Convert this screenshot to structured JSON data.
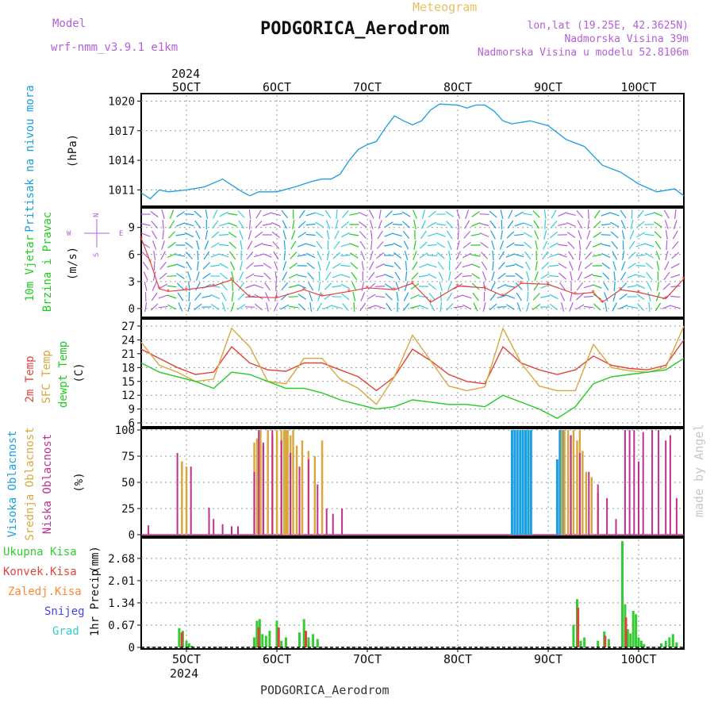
{
  "header": {
    "model_label": "Model",
    "model_name": "wrf-nmm_v3.9.1 e1km",
    "meteogram_label": "Meteogram",
    "station": "PODGORICA_Aerodrom",
    "lonlat": "lon,lat (19.25E, 42.3625N)",
    "elevation": "Nadmorska Visina 39m",
    "model_elevation": "Nadmorska Visina u modelu 52.8106m",
    "footer_station": "PODGORICA_Aerodrom",
    "watermark": "made by Angel"
  },
  "colors": {
    "purple": "#b35fd8",
    "pressure": "#1a9fe0",
    "wind_green": "#22cc22",
    "temp_red": "#e0443c",
    "sfc_orange": "#d8a840",
    "dew_green": "#22cc22",
    "cloud_high": "#1a9fe0",
    "cloud_mid": "#d8a840",
    "cloud_low": "#c03090",
    "precip_total": "#33cc33",
    "precip_conv": "#e0443c",
    "precip_frozen": "#ff8833",
    "precip_snow": "#4444ee",
    "precip_grad": "#33cccc",
    "gold": "#e8c060"
  },
  "time_axis": {
    "top_year": "2024",
    "bottom_year": "2024",
    "days": [
      "5OCT",
      "6OCT",
      "7OCT",
      "8OCT",
      "9OCT",
      "10OCT"
    ]
  },
  "chart_data": [
    {
      "type": "line",
      "panel": "pressure",
      "ylabel": "Pritisak na nivou mora",
      "unit": "(hPa)",
      "yticks": [
        "1011",
        "1014",
        "1017",
        "1020"
      ],
      "ylim": [
        1009.5,
        1020.6
      ],
      "x": [
        4.5,
        4.6,
        4.7,
        4.8,
        5.0,
        5.2,
        5.4,
        5.6,
        5.7,
        5.8,
        6.0,
        6.2,
        6.4,
        6.5,
        6.6,
        6.7,
        6.8,
        6.9,
        7.0,
        7.1,
        7.2,
        7.3,
        7.4,
        7.5,
        7.6,
        7.7,
        7.8,
        8.0,
        8.1,
        8.2,
        8.3,
        8.4,
        8.5,
        8.6,
        8.8,
        9.0,
        9.2,
        9.4,
        9.6,
        9.8,
        10.0,
        10.2,
        10.4,
        10.5
      ],
      "values": [
        1010.7,
        1010.1,
        1011.0,
        1010.8,
        1011.0,
        1011.3,
        1012.1,
        1010.9,
        1010.4,
        1010.8,
        1010.8,
        1011.3,
        1011.9,
        1012.1,
        1012.1,
        1012.6,
        1014.0,
        1015.1,
        1015.6,
        1015.9,
        1017.3,
        1018.5,
        1018.0,
        1017.6,
        1018.0,
        1019.1,
        1019.7,
        1019.6,
        1019.3,
        1019.6,
        1019.6,
        1019.0,
        1018.0,
        1017.7,
        1018.0,
        1017.5,
        1016.1,
        1015.4,
        1013.5,
        1012.8,
        1011.6,
        1010.8,
        1011.1,
        1010.4
      ]
    },
    {
      "type": "line",
      "panel": "wind",
      "ylabel_top": "10m Vjetar",
      "ylabel_bottom": "Brzina i Pravac",
      "unit": "(m/s)",
      "compass": [
        "N",
        "W",
        "E",
        "S"
      ],
      "yticks": [
        "0",
        "3",
        "6",
        "9"
      ],
      "ylim": [
        -0.8,
        11
      ],
      "x": [
        4.5,
        4.6,
        4.7,
        4.8,
        5.0,
        5.3,
        5.5,
        5.7,
        6.0,
        6.3,
        6.5,
        6.8,
        7.0,
        7.3,
        7.5,
        7.7,
        8.0,
        8.3,
        8.5,
        8.7,
        9.0,
        9.3,
        9.5,
        9.6,
        9.8,
        10.0,
        10.3,
        10.5
      ],
      "values": [
        7.8,
        5.2,
        2.2,
        1.9,
        2.1,
        2.5,
        3.2,
        1.3,
        1.2,
        2.1,
        1.4,
        1.9,
        2.3,
        2.1,
        2.8,
        0.7,
        2.5,
        2.3,
        1.4,
        2.8,
        2.7,
        1.6,
        1.8,
        0.7,
        2.1,
        1.8,
        1.1,
        3.3
      ]
    },
    {
      "type": "line",
      "panel": "temperature",
      "labels": [
        "2m Temp",
        "SFC Temp",
        "dewpt Temp"
      ],
      "unit": "(C)",
      "yticks": [
        "6",
        "9",
        "12",
        "15",
        "18",
        "21",
        "24",
        "27"
      ],
      "ylim": [
        5.5,
        28.2
      ],
      "x": [
        4.5,
        4.7,
        4.9,
        5.1,
        5.3,
        5.5,
        5.7,
        5.9,
        6.1,
        6.3,
        6.5,
        6.7,
        6.9,
        7.1,
        7.3,
        7.5,
        7.7,
        7.9,
        8.1,
        8.3,
        8.5,
        8.7,
        8.9,
        9.1,
        9.3,
        9.5,
        9.7,
        9.9,
        10.1,
        10.3,
        10.5
      ],
      "series": [
        {
          "name": "2m Temp",
          "values": [
            22,
            20,
            18,
            16.5,
            17,
            22.5,
            19,
            17.5,
            17.2,
            19,
            19,
            17.5,
            16,
            13,
            16,
            22,
            19.5,
            16.5,
            15,
            14.5,
            22.5,
            19,
            17.5,
            16.5,
            17.5,
            20.5,
            18.5,
            17.8,
            17.5,
            18.5,
            24
          ]
        },
        {
          "name": "SFC Temp",
          "values": [
            23.5,
            18.5,
            17,
            15,
            15.5,
            26.5,
            22.5,
            15,
            14.5,
            20,
            20,
            15.5,
            13.5,
            10,
            16,
            25,
            19.5,
            14,
            13,
            13.8,
            26.5,
            19,
            14,
            13,
            13,
            23,
            18,
            17.3,
            17,
            18,
            27
          ]
        },
        {
          "name": "dewpt Temp",
          "values": [
            19,
            17,
            16,
            15,
            13.5,
            17,
            16.5,
            15,
            13.5,
            13.5,
            12.5,
            11,
            10,
            9,
            9.5,
            11,
            10.5,
            10,
            10,
            9.5,
            12,
            10.5,
            9,
            7,
            9.5,
            14.5,
            16,
            16.5,
            17,
            17.5,
            20
          ]
        }
      ]
    },
    {
      "type": "bar",
      "panel": "clouds",
      "labels": [
        "Visoka Oblacnost",
        "Srednja Oblacnost",
        "Niska Oblacnost"
      ],
      "unit": "(%)",
      "yticks": [
        "0",
        "25",
        "50",
        "75",
        "100"
      ],
      "ylim": [
        0,
        100
      ],
      "series": [
        {
          "name": "Visoka Oblacnost",
          "x": [
            8.6,
            8.63,
            8.66,
            8.69,
            8.72,
            8.75,
            8.78,
            8.81,
            9.1,
            9.13,
            9.16
          ],
          "values": [
            100,
            100,
            100,
            100,
            100,
            100,
            100,
            100,
            72,
            100,
            100
          ]
        },
        {
          "name": "Srednja Oblacnost",
          "x": [
            4.95,
            5.0,
            5.75,
            5.78,
            5.82,
            5.85,
            5.9,
            5.95,
            6.0,
            6.05,
            6.08,
            6.1,
            6.12,
            6.15,
            6.18,
            6.22,
            6.28,
            6.35,
            6.42,
            6.5,
            9.15,
            9.18,
            9.22,
            9.25,
            9.28,
            9.32,
            9.35,
            9.38,
            9.42,
            9.48,
            9.55
          ],
          "values": [
            70,
            65,
            88,
            92,
            100,
            85,
            100,
            95,
            100,
            100,
            100,
            100,
            100,
            95,
            100,
            85,
            90,
            80,
            75,
            90,
            100,
            100,
            100,
            95,
            100,
            90,
            100,
            80,
            60,
            55,
            40
          ]
        },
        {
          "name": "Niska Oblacnost",
          "x": [
            4.58,
            4.9,
            5.05,
            5.25,
            5.3,
            5.4,
            5.5,
            5.57,
            5.75,
            5.8,
            5.85,
            5.95,
            6.05,
            6.15,
            6.25,
            6.35,
            6.45,
            6.55,
            6.62,
            6.72,
            9.25,
            9.35,
            9.45,
            9.55,
            9.65,
            9.75,
            9.85,
            9.9,
            9.95,
            10.0,
            10.05,
            10.15,
            10.22,
            10.3,
            10.35,
            10.42
          ],
          "values": [
            9,
            78,
            65,
            26,
            15,
            10,
            8,
            8,
            60,
            100,
            88,
            100,
            90,
            78,
            65,
            72,
            48,
            25,
            20,
            25,
            95,
            78,
            60,
            48,
            35,
            15,
            100,
            100,
            100,
            70,
            98,
            100,
            100,
            90,
            95,
            35
          ]
        }
      ]
    },
    {
      "type": "bar",
      "panel": "precipitation",
      "labels": [
        "Ukupna Kisa",
        "Konvek.Kisa",
        "Zaledj.Kisa",
        "Snijeg",
        "Grad"
      ],
      "ylabel": "1hr Precip",
      "unit": "(mm)",
      "yticks": [
        "0",
        "0.67",
        "1.34",
        "2.01",
        "2.68"
      ],
      "ylim": [
        0,
        3.25
      ],
      "series": [
        {
          "name": "Ukupna Kisa",
          "x": [
            4.92,
            4.96,
            5.0,
            5.03,
            5.06,
            5.75,
            5.78,
            5.81,
            5.84,
            5.88,
            5.92,
            6.0,
            6.05,
            6.1,
            6.25,
            6.3,
            6.35,
            6.4,
            6.45,
            9.28,
            9.32,
            9.36,
            9.4,
            9.55,
            9.62,
            9.67,
            9.82,
            9.85,
            9.88,
            9.91,
            9.94,
            9.97,
            10.0,
            10.03,
            10.06,
            10.25,
            10.3,
            10.34,
            10.38,
            10.42
          ],
          "values": [
            0.58,
            0.5,
            0.2,
            0.12,
            0.05,
            0.3,
            0.8,
            0.85,
            0.4,
            0.35,
            0.5,
            0.8,
            0.2,
            0.3,
            0.45,
            0.85,
            0.3,
            0.4,
            0.25,
            0.68,
            1.45,
            0.2,
            0.3,
            0.2,
            0.48,
            0.25,
            3.2,
            1.3,
            0.55,
            0.42,
            1.1,
            1.0,
            0.3,
            0.2,
            0.1,
            0.12,
            0.2,
            0.3,
            0.4,
            0.15
          ]
        },
        {
          "name": "Konvek.Kisa",
          "x": [
            4.95,
            5.8,
            6.02,
            6.32,
            9.33,
            9.63,
            9.86
          ],
          "values": [
            0.45,
            0.6,
            0.6,
            0.5,
            1.2,
            0.35,
            0.9
          ]
        }
      ]
    }
  ]
}
